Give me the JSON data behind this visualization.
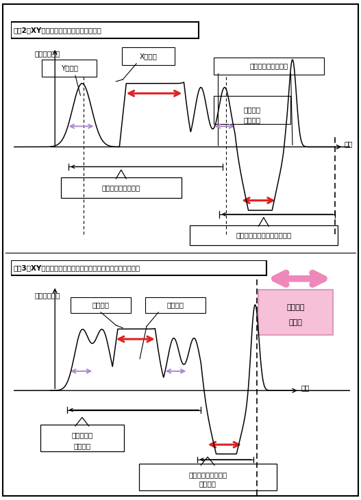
{
  "fig_width": 5.27,
  "fig_height": 7.3,
  "bg_color": "#ffffff",
  "title1": "【図2】XYテーブルの駆動制御とムダ時間",
  "title2": "【図3】XYテーブルの協調動作制御によるムダ時間の削除図解",
  "ylabel1": "テーブル速度",
  "ylabel2": "テーブル速度",
  "xlabel1": "時間",
  "xlabel2": "時間",
  "label_y_move": "Y軸移動",
  "label_x_move": "X軸移動",
  "label_main": "主作業（加工時間）",
  "label_muda1": "付随作業\nムダ時間",
  "label_cycle1": "１サイクル加工駆動",
  "label_cycle2": "反対方向１サイクル加工駆動",
  "label_kako": "加工時間",
  "label_muda2": "ムダ時間",
  "label_muda_del": "ムダ時間\nの削除",
  "label_cycle3_1": "１サイクル",
  "label_cycle3_2": "加工駆動",
  "label_cycle4_1": "反対方向１サイクル",
  "label_cycle4_2": "加工駆動",
  "red_arrow_color": "#dd2222",
  "purple_arrow_color": "#aa88cc",
  "pink_arrow_color": "#ee88bb",
  "pink_bg_color": "#f5c0d8",
  "pink_border_color": "#dd99bb"
}
